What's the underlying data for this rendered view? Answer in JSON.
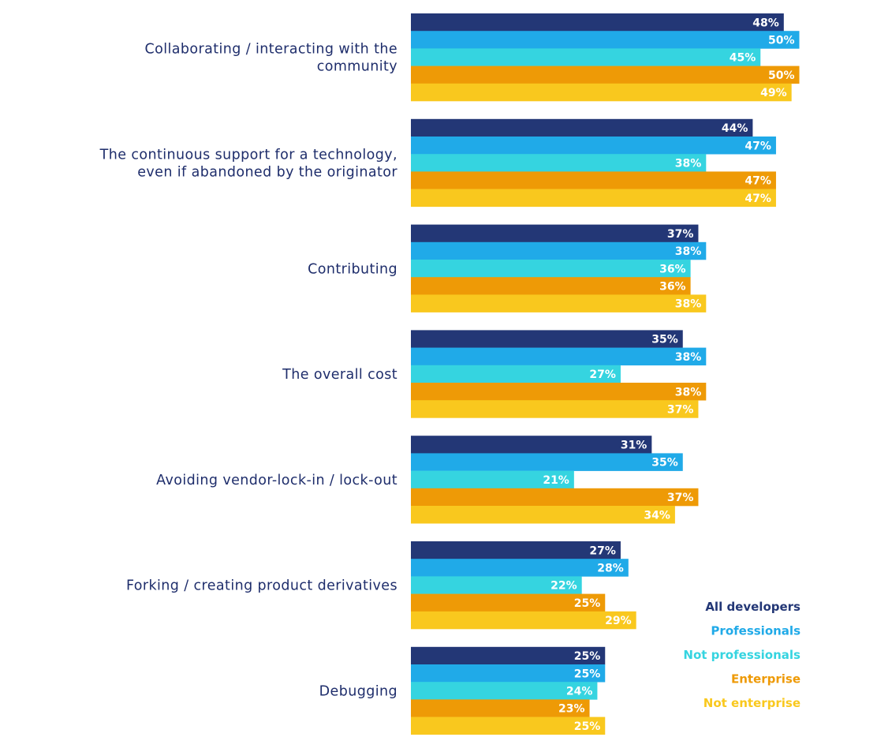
{
  "chart_data": {
    "type": "bar",
    "orientation": "horizontal",
    "categories": [
      "Collaborating / interacting with the\ncommunity",
      "The continuous support for a technology,\neven if abandoned by the originator",
      "Contributing",
      "The overall cost",
      "Avoiding vendor-lock-in / lock-out",
      "Forking / creating product derivatives",
      "Debugging"
    ],
    "series": [
      {
        "name": "All developers",
        "color": "#233776",
        "values": [
          48,
          44,
          37,
          35,
          31,
          27,
          25
        ]
      },
      {
        "name": "Professionals",
        "color": "#20aae8",
        "values": [
          50,
          47,
          38,
          38,
          35,
          28,
          25
        ]
      },
      {
        "name": "Not professionals",
        "color": "#35d4e0",
        "values": [
          45,
          38,
          36,
          27,
          21,
          22,
          24
        ]
      },
      {
        "name": "Enterprise",
        "color": "#ee9a06",
        "values": [
          50,
          47,
          36,
          38,
          37,
          25,
          23
        ]
      },
      {
        "name": "Not enterprise",
        "color": "#f9c81e",
        "values": [
          49,
          47,
          38,
          37,
          34,
          29,
          25
        ]
      }
    ],
    "value_suffix": "%",
    "xlim": [
      0,
      50
    ],
    "grid": false,
    "legend_position": "bottom-right",
    "title": "",
    "xlabel": "",
    "ylabel": ""
  }
}
